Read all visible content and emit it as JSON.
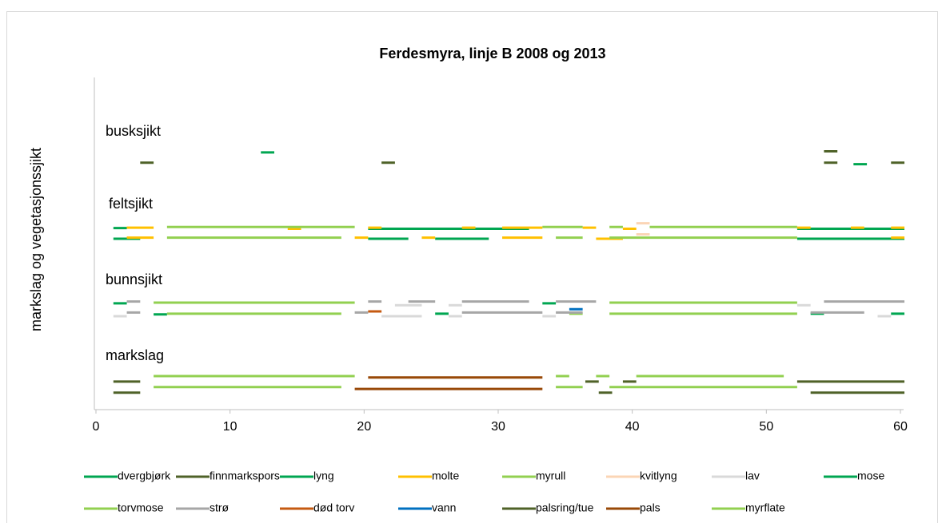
{
  "chart_data": {
    "type": "segments",
    "title": "Ferdesmyra, linje B 2008 og 2013",
    "y_label": "markslag og vegetasjonssjikt",
    "group_labels": [
      "busksjikt",
      "feltsjikt",
      "bunnsjikt",
      "markslag"
    ],
    "xlim": [
      0,
      60
    ],
    "xticks": [
      0,
      10,
      20,
      30,
      40,
      50,
      60
    ],
    "ylim": [
      0,
      9
    ],
    "series": [
      {
        "name": "dvergbjørk",
        "color": "#00a651",
        "segments": [
          [
            12.3,
            13.3,
            6.97
          ],
          [
            56.5,
            57.5,
            6.65
          ]
        ]
      },
      {
        "name": "finnmarkspors",
        "color": "#4f6228",
        "segments": [
          [
            3.3,
            4.3,
            6.69
          ],
          [
            21.3,
            22.3,
            6.69
          ],
          [
            54.3,
            55.3,
            7.0
          ],
          [
            54.3,
            55.3,
            6.69
          ],
          [
            59.3,
            60.3,
            6.69
          ]
        ]
      },
      {
        "name": "lyng",
        "color": "#00a651",
        "segments": [
          [
            1.3,
            2.3,
            4.92
          ],
          [
            20.3,
            32.3,
            4.9
          ],
          [
            52.3,
            60.3,
            4.9
          ],
          [
            1.3,
            3.3,
            4.63
          ],
          [
            20.3,
            23.3,
            4.63
          ],
          [
            25.3,
            29.3,
            4.63
          ],
          [
            52.3,
            60.3,
            4.63
          ]
        ]
      },
      {
        "name": "molte",
        "color": "#ffc000",
        "segments": [
          [
            2.3,
            4.3,
            4.93
          ],
          [
            14.3,
            15.3,
            4.9
          ],
          [
            20.3,
            21.3,
            4.93
          ],
          [
            27.3,
            28.3,
            4.93
          ],
          [
            30.3,
            33.3,
            4.93
          ],
          [
            36.3,
            37.3,
            4.93
          ],
          [
            39.3,
            40.3,
            4.9
          ],
          [
            52.3,
            53.3,
            4.93
          ],
          [
            56.3,
            57.3,
            4.93
          ],
          [
            59.3,
            60.3,
            4.93
          ],
          [
            2.3,
            4.3,
            4.66
          ],
          [
            19.3,
            20.3,
            4.66
          ],
          [
            24.3,
            25.3,
            4.66
          ],
          [
            30.3,
            33.3,
            4.66
          ],
          [
            37.3,
            39.3,
            4.63
          ],
          [
            59.3,
            60.3,
            4.66
          ]
        ]
      },
      {
        "name": "myrull",
        "color": "#92d050",
        "segments": [
          [
            5.3,
            19.3,
            4.95
          ],
          [
            33.3,
            36.3,
            4.95
          ],
          [
            38.3,
            39.3,
            4.95
          ],
          [
            41.3,
            52.3,
            4.95
          ],
          [
            5.3,
            18.3,
            4.66
          ],
          [
            34.3,
            36.3,
            4.66
          ],
          [
            38.3,
            52.3,
            4.66
          ]
        ]
      },
      {
        "name": "kvitlyng",
        "color": "#fbd5b5",
        "segments": [
          [
            40.3,
            41.3,
            5.05
          ],
          [
            40.3,
            41.3,
            4.75
          ]
        ]
      },
      {
        "name": "lav",
        "color": "#d9d9d9",
        "segments": [
          [
            22.3,
            24.3,
            2.83
          ],
          [
            26.3,
            27.3,
            2.83
          ],
          [
            52.3,
            53.3,
            2.83
          ],
          [
            1.3,
            2.3,
            2.53
          ],
          [
            21.3,
            24.3,
            2.53
          ],
          [
            26.3,
            27.3,
            2.53
          ],
          [
            33.3,
            34.3,
            2.53
          ],
          [
            58.3,
            59.3,
            2.53
          ]
        ]
      },
      {
        "name": "mose",
        "color": "#00a651",
        "segments": [
          [
            1.3,
            2.3,
            2.88
          ],
          [
            33.3,
            34.3,
            2.88
          ],
          [
            4.3,
            5.3,
            2.58
          ],
          [
            25.3,
            26.3,
            2.6
          ],
          [
            53.3,
            54.3,
            2.6
          ],
          [
            59.3,
            60.3,
            2.6
          ]
        ]
      },
      {
        "name": "torvmose",
        "color": "#92d050",
        "segments": [
          [
            4.3,
            19.3,
            2.9
          ],
          [
            38.3,
            52.3,
            2.9
          ],
          [
            5.3,
            18.3,
            2.6
          ],
          [
            35.3,
            36.3,
            2.6
          ],
          [
            38.3,
            52.3,
            2.6
          ]
        ]
      },
      {
        "name": "strø",
        "color": "#a6a6a6",
        "segments": [
          [
            2.3,
            3.3,
            2.93
          ],
          [
            20.3,
            21.3,
            2.93
          ],
          [
            23.3,
            25.3,
            2.93
          ],
          [
            27.3,
            32.3,
            2.93
          ],
          [
            34.3,
            37.3,
            2.93
          ],
          [
            54.3,
            60.3,
            2.93
          ],
          [
            2.3,
            3.3,
            2.63
          ],
          [
            19.3,
            20.3,
            2.63
          ],
          [
            27.3,
            33.3,
            2.63
          ],
          [
            34.3,
            36.3,
            2.63
          ],
          [
            53.3,
            57.3,
            2.63
          ]
        ]
      },
      {
        "name": "død torv",
        "color": "#c55a11",
        "segments": [
          [
            20.3,
            21.3,
            2.66
          ]
        ]
      },
      {
        "name": "vann",
        "color": "#0070c0",
        "segments": [
          [
            35.3,
            36.3,
            2.72
          ]
        ]
      },
      {
        "name": "palsring/tue",
        "color": "#4f6228",
        "segments": [
          [
            1.3,
            3.3,
            0.76
          ],
          [
            1.3,
            3.3,
            0.46
          ],
          [
            36.5,
            37.5,
            0.76
          ],
          [
            37.5,
            38.5,
            0.46
          ],
          [
            39.3,
            40.3,
            0.76
          ],
          [
            52.3,
            60.3,
            0.76
          ],
          [
            53.3,
            60.3,
            0.46
          ]
        ]
      },
      {
        "name": "pals",
        "color": "#984807",
        "segments": [
          [
            20.3,
            33.3,
            0.87
          ],
          [
            19.3,
            33.3,
            0.56
          ]
        ]
      },
      {
        "name": "myrflate",
        "color": "#92d050",
        "segments": [
          [
            4.3,
            19.3,
            0.91
          ],
          [
            34.3,
            35.3,
            0.91
          ],
          [
            37.3,
            38.3,
            0.91
          ],
          [
            40.3,
            51.3,
            0.91
          ],
          [
            4.3,
            18.3,
            0.61
          ],
          [
            34.3,
            36.3,
            0.61
          ],
          [
            38.3,
            52.3,
            0.61
          ]
        ]
      }
    ]
  }
}
